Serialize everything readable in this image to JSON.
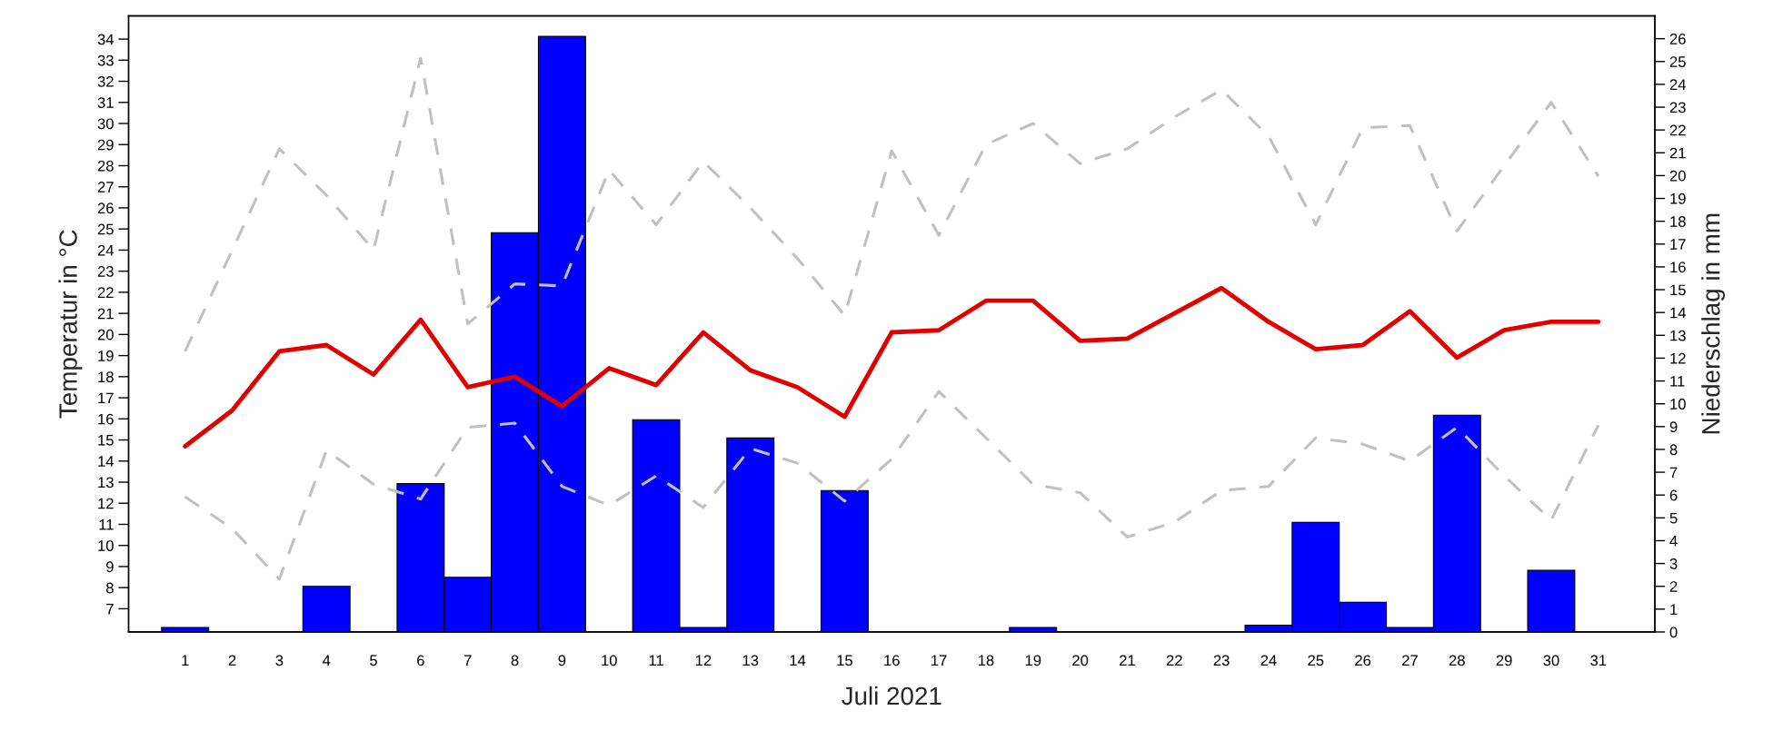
{
  "chart_data": {
    "type": "line",
    "xlabel": "Juli 2021",
    "ylabel": "Temperatur in °C",
    "y2label": "Niederschlag in mm",
    "x": [
      1,
      2,
      3,
      4,
      5,
      6,
      7,
      8,
      9,
      10,
      11,
      12,
      13,
      14,
      15,
      16,
      17,
      18,
      19,
      20,
      21,
      22,
      23,
      24,
      25,
      26,
      27,
      28,
      29,
      30,
      31
    ],
    "xlim": [
      -0.2,
      32.2
    ],
    "xticks": [
      1,
      2,
      3,
      4,
      5,
      6,
      7,
      8,
      9,
      10,
      11,
      12,
      13,
      14,
      15,
      16,
      17,
      18,
      19,
      20,
      21,
      22,
      23,
      24,
      25,
      26,
      27,
      28,
      29,
      30,
      31
    ],
    "ylim": [
      5.9,
      35.1
    ],
    "yticks": [
      7,
      8,
      9,
      10,
      11,
      12,
      13,
      14,
      15,
      16,
      17,
      18,
      19,
      20,
      21,
      22,
      23,
      24,
      25,
      26,
      27,
      28,
      29,
      30,
      31,
      32,
      33,
      34
    ],
    "y2lim": [
      0,
      27
    ],
    "y2ticks": [
      0,
      1,
      2,
      3,
      4,
      5,
      6,
      7,
      8,
      9,
      10,
      11,
      12,
      13,
      14,
      15,
      16,
      17,
      18,
      19,
      20,
      21,
      22,
      23,
      24,
      25,
      26
    ],
    "grid": false,
    "legend": false,
    "marker": "none",
    "series": [
      {
        "type": "bar",
        "axis": "y2",
        "color": "#0000ff",
        "values": [
          0.2,
          0,
          0,
          2.0,
          0,
          6.5,
          2.4,
          17.5,
          26.1,
          0,
          9.3,
          0.2,
          8.5,
          0,
          6.2,
          0,
          0,
          0,
          0.2,
          0,
          0,
          0,
          0,
          0.3,
          4.8,
          1.3,
          0.2,
          9.5,
          0,
          2.7,
          0
        ]
      },
      {
        "color": "#c0c0c0",
        "line_style": "dashed",
        "values": [
          19.2,
          24.0,
          28.8,
          26.6,
          24.0,
          33.1,
          20.5,
          22.4,
          22.3,
          27.8,
          25.2,
          28.2,
          26.0,
          23.6,
          20.9,
          28.7,
          24.7,
          29.0,
          30.0,
          28.1,
          28.8,
          30.3,
          31.6,
          29.4,
          25.2,
          29.8,
          29.9,
          24.9,
          28.0,
          31.0,
          27.5
        ]
      },
      {
        "color": "#c0c0c0",
        "line_style": "dashed",
        "values": [
          12.3,
          10.8,
          8.4,
          14.5,
          12.9,
          12.2,
          15.6,
          15.8,
          12.8,
          11.9,
          13.3,
          11.8,
          14.6,
          13.9,
          12.1,
          14.1,
          17.3,
          15.1,
          12.9,
          12.5,
          10.4,
          11.1,
          12.6,
          12.8,
          15.1,
          14.8,
          14.0,
          15.6,
          13.3,
          11.2,
          15.7
        ]
      },
      {
        "color": "#e00000",
        "line_style": "solid",
        "values": [
          14.7,
          16.4,
          19.2,
          19.5,
          18.1,
          20.7,
          17.5,
          18.0,
          16.6,
          18.4,
          17.6,
          20.1,
          18.3,
          17.5,
          16.1,
          20.1,
          20.2,
          21.6,
          21.6,
          19.7,
          19.8,
          21.0,
          22.2,
          20.6,
          19.3,
          19.5,
          21.1,
          18.9,
          20.2,
          20.6,
          20.6
        ]
      }
    ]
  }
}
